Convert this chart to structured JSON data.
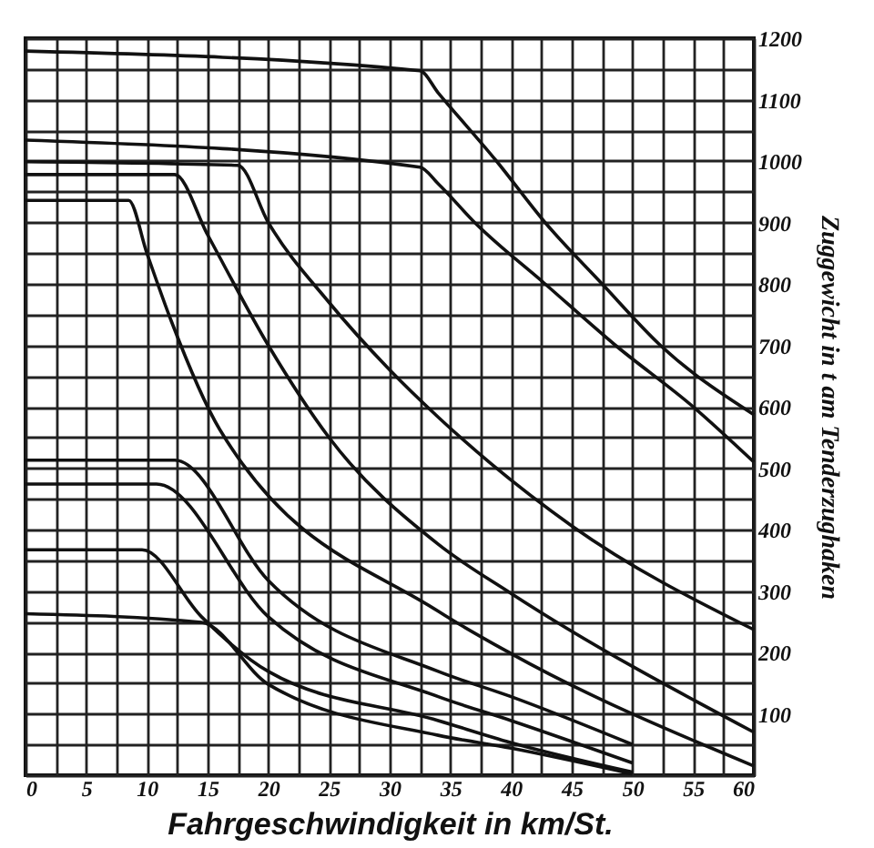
{
  "chart_data": {
    "type": "line",
    "xlabel": "Fahrgeschwindigkeit in km/St.",
    "ylabel": "Zuggewicht in t am Tenderzughaken",
    "xlim": [
      0,
      60
    ],
    "ylim": [
      0,
      1200
    ],
    "xticks": [
      0,
      {
        "value": 2.5,
        "label": null
      },
      5,
      {
        "value": 7.5,
        "label": null
      },
      10,
      {
        "value": 12.5,
        "label": null
      },
      15,
      {
        "value": 17.5,
        "label": null
      },
      20,
      {
        "value": 22.5,
        "label": null
      },
      25,
      {
        "value": 27.5,
        "label": null
      },
      30,
      {
        "value": 32.5,
        "label": null
      },
      35,
      {
        "value": 37.5,
        "label": null
      },
      40,
      {
        "value": 42.5,
        "label": null
      },
      45,
      {
        "value": 47.5,
        "label": null
      },
      50,
      {
        "value": 52.5,
        "label": null
      },
      55,
      {
        "value": 57.5,
        "label": null
      },
      60
    ],
    "yticks": [
      {
        "value": 0,
        "label": null
      },
      {
        "value": 50,
        "label": null
      },
      100,
      {
        "value": 150,
        "label": null
      },
      200,
      {
        "value": 250,
        "label": null
      },
      300,
      {
        "value": 350,
        "label": null
      },
      400,
      {
        "value": 450,
        "label": null
      },
      500,
      {
        "value": 550,
        "label": null
      },
      600,
      {
        "value": 650,
        "label": null
      },
      700,
      {
        "value": 750,
        "label": null
      },
      800,
      {
        "value": 850,
        "label": null
      },
      900,
      {
        "value": 950,
        "label": null
      },
      1000,
      {
        "value": 1050,
        "label": null
      },
      1100,
      {
        "value": 1150,
        "label": null
      },
      1200
    ],
    "grid": true,
    "legend": false,
    "series": [
      {
        "color": "#111111",
        "x": [
          0,
          32.5,
          34,
          38.8,
          42.8,
          47.5,
          52.3,
          60
        ],
        "values": [
          1179,
          1147,
          1111,
          1000,
          900,
          800,
          700,
          587
        ]
      },
      {
        "color": "#111111",
        "x": [
          0,
          32.5,
          34,
          37,
          42.8,
          48.6,
          55,
          60
        ],
        "values": [
          1034,
          990,
          963,
          900,
          800,
          700,
          600,
          510
        ]
      },
      {
        "color": "#111111",
        "x": [
          0,
          17.5,
          20,
          25,
          30,
          34,
          45,
          60
        ],
        "values": [
          999,
          993,
          900,
          770,
          660,
          583,
          406,
          237
        ]
      },
      {
        "color": "#111111",
        "x": [
          0,
          12.3,
          15,
          20,
          25,
          34,
          40,
          60
        ],
        "values": [
          978,
          978,
          880,
          700,
          550,
          376,
          296,
          70
        ]
      },
      {
        "color": "#111111",
        "x": [
          0,
          8.5,
          10,
          12,
          16,
          34,
          40,
          60
        ],
        "values": [
          936,
          936,
          850,
          740,
          563,
          267,
          198,
          15
        ]
      },
      {
        "color": "#111111",
        "x": [
          0,
          12.3,
          20,
          34,
          40,
          50
        ],
        "values": [
          513,
          513,
          317,
          169,
          128,
          50
        ]
      },
      {
        "color": "#111111",
        "x": [
          0,
          10.8,
          20,
          34,
          40,
          50
        ],
        "values": [
          474,
          474,
          258,
          128,
          89,
          20
        ]
      },
      {
        "color": "#111111",
        "x": [
          0,
          9.6,
          14.5,
          20,
          34,
          40,
          50
        ],
        "values": [
          367,
          367,
          258,
          169,
          89,
          53,
          5
        ]
      },
      {
        "color": "#111111",
        "x": [
          0,
          14.5,
          20,
          34,
          40,
          50
        ],
        "values": [
          263,
          249,
          148,
          65,
          44,
          2
        ]
      }
    ]
  }
}
